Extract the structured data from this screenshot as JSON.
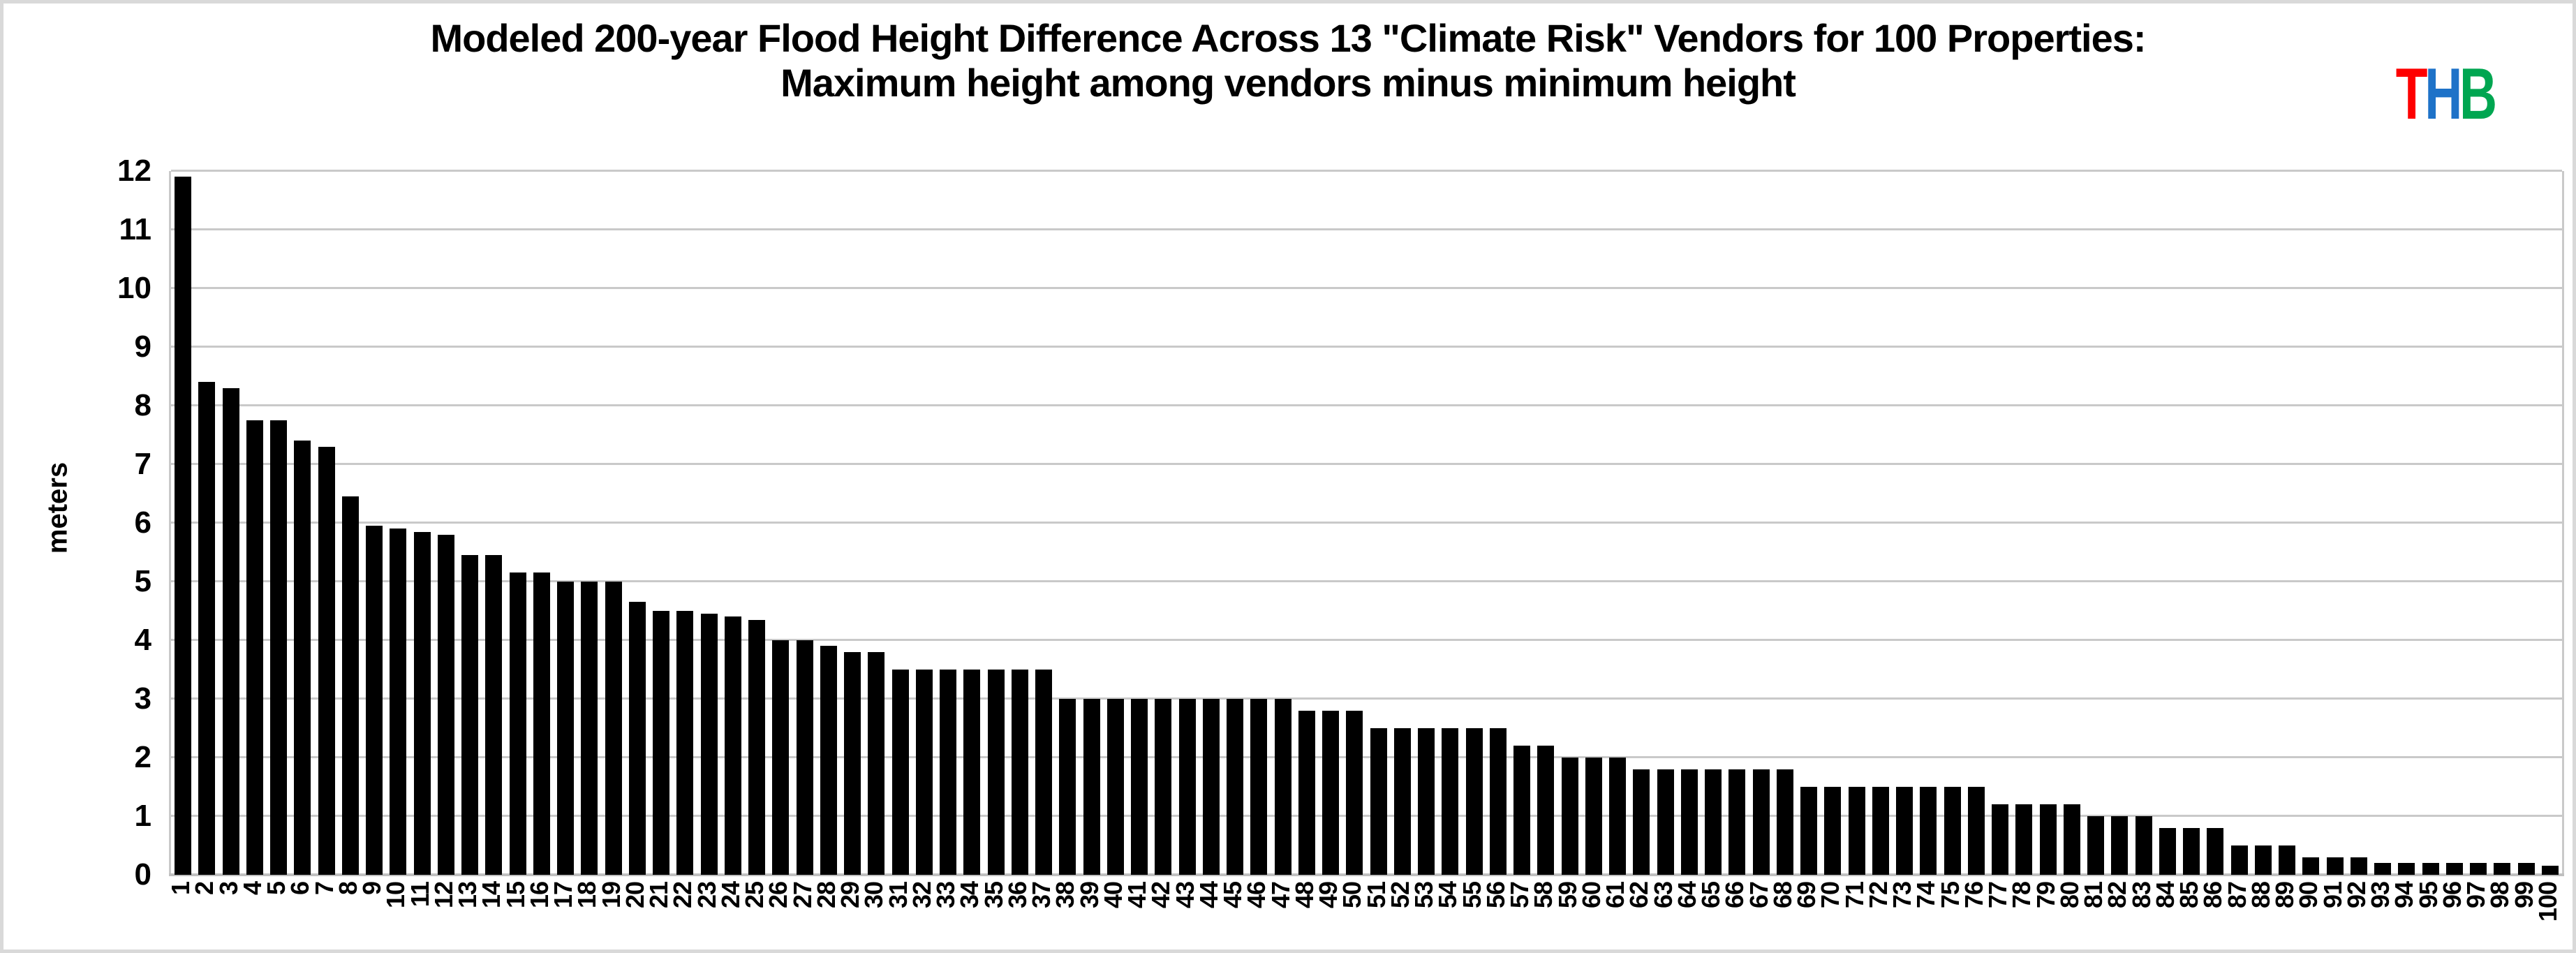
{
  "title": {
    "line1": "Modeled 200-year Flood Height Difference Across 13 \"Climate Risk\" Vendors for 100 Properties:",
    "line2": "Maximum height among vendors minus minimum height"
  },
  "logo": {
    "letters": [
      {
        "char": "T",
        "color": "#fe0000"
      },
      {
        "char": "H",
        "color": "#1e72c8"
      },
      {
        "char": "B",
        "color": "#00a651"
      }
    ]
  },
  "colors": {
    "bar": "#000000",
    "gridline": "#c9c9c9",
    "baseline": "#bfbfbf",
    "frame_border": "#d9d9d9",
    "text": "#000000"
  },
  "chart_data": {
    "type": "bar",
    "title": "Modeled 200-year Flood Height Difference Across 13 \"Climate Risk\" Vendors for 100 Properties: Maximum height among vendors minus minimum height",
    "xlabel": "",
    "ylabel": "meters",
    "ylim": [
      0,
      12
    ],
    "y_ticks": [
      0,
      1,
      2,
      3,
      4,
      5,
      6,
      7,
      8,
      9,
      10,
      11,
      12
    ],
    "grid": true,
    "legend": false,
    "bar_color": "#000000",
    "categories": [
      1,
      2,
      3,
      4,
      5,
      6,
      7,
      8,
      9,
      10,
      11,
      12,
      13,
      14,
      15,
      16,
      17,
      18,
      19,
      20,
      21,
      22,
      23,
      24,
      25,
      26,
      27,
      28,
      29,
      30,
      31,
      32,
      33,
      34,
      35,
      36,
      37,
      38,
      39,
      40,
      41,
      42,
      43,
      44,
      45,
      46,
      47,
      48,
      49,
      50,
      51,
      52,
      53,
      54,
      55,
      56,
      57,
      58,
      59,
      60,
      61,
      62,
      63,
      64,
      65,
      66,
      67,
      68,
      69,
      70,
      71,
      72,
      73,
      74,
      75,
      76,
      77,
      78,
      79,
      80,
      81,
      82,
      83,
      84,
      85,
      86,
      87,
      88,
      89,
      90,
      91,
      92,
      93,
      94,
      95,
      96,
      97,
      98,
      99,
      100
    ],
    "values": [
      11.9,
      8.4,
      8.3,
      7.75,
      7.75,
      7.4,
      7.3,
      6.45,
      5.95,
      5.9,
      5.85,
      5.8,
      5.45,
      5.45,
      5.15,
      5.15,
      5.0,
      5.0,
      5.0,
      4.65,
      4.5,
      4.5,
      4.45,
      4.4,
      4.35,
      4.0,
      4.0,
      3.9,
      3.8,
      3.8,
      3.5,
      3.5,
      3.5,
      3.5,
      3.5,
      3.5,
      3.5,
      3.0,
      3.0,
      3.0,
      3.0,
      3.0,
      3.0,
      3.0,
      3.0,
      3.0,
      3.0,
      2.8,
      2.8,
      2.8,
      2.5,
      2.5,
      2.5,
      2.5,
      2.5,
      2.5,
      2.2,
      2.2,
      2.0,
      2.0,
      2.0,
      1.8,
      1.8,
      1.8,
      1.8,
      1.8,
      1.8,
      1.8,
      1.5,
      1.5,
      1.5,
      1.5,
      1.5,
      1.5,
      1.5,
      1.5,
      1.2,
      1.2,
      1.2,
      1.2,
      1.0,
      1.0,
      1.0,
      0.8,
      0.8,
      0.8,
      0.5,
      0.5,
      0.5,
      0.3,
      0.3,
      0.3,
      0.2,
      0.2,
      0.2,
      0.2,
      0.2,
      0.2,
      0.2,
      0.15
    ]
  }
}
